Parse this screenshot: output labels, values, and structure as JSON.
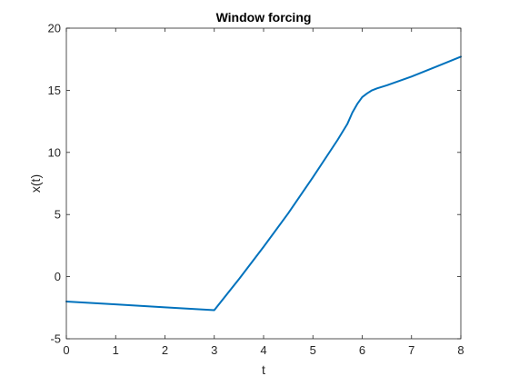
{
  "chart_data": {
    "type": "line",
    "title": "Window forcing",
    "xlabel": "t",
    "ylabel": "x(t)",
    "xlim": [
      0,
      8
    ],
    "ylim": [
      -5,
      20
    ],
    "xticks": [
      0,
      1,
      2,
      3,
      4,
      5,
      6,
      7,
      8
    ],
    "yticks": [
      -5,
      0,
      5,
      10,
      15,
      20
    ],
    "grid": false,
    "line_color": "#0072BD",
    "series": [
      {
        "x": [
          0,
          1,
          2,
          3,
          3.5,
          4,
          4.5,
          5,
          5.5,
          5.7,
          5.8,
          5.9,
          6.0,
          6.1,
          6.2,
          6.3,
          6.5,
          7,
          7.5,
          8
        ],
        "y": [
          -2.0,
          -2.23,
          -2.47,
          -2.7,
          -0.2,
          2.4,
          5.1,
          8.0,
          11.0,
          12.3,
          13.2,
          13.9,
          14.45,
          14.75,
          15.0,
          15.15,
          15.4,
          16.1,
          16.9,
          17.7
        ]
      }
    ]
  }
}
